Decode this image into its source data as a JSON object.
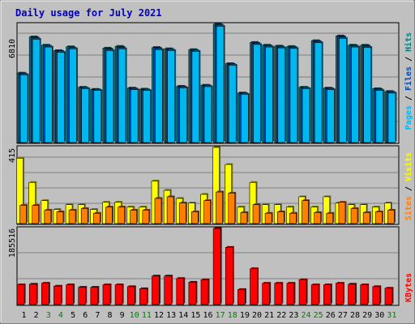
{
  "chart_data": [
    {
      "type": "bar",
      "title": "Daily usage for July 2021",
      "ylabel_parts": [
        {
          "text": "Pages",
          "color": "#00b8f0"
        },
        {
          "text": " / ",
          "color": "#000000"
        },
        {
          "text": "Files",
          "color": "#0048b0"
        },
        {
          "text": " / ",
          "color": "#000000"
        },
        {
          "text": "Hits",
          "color": "#008080"
        }
      ],
      "ymax_label": "6810",
      "ylim": [
        0,
        6810
      ],
      "categories": [
        "1",
        "2",
        "3",
        "4",
        "5",
        "6",
        "7",
        "8",
        "9",
        "10",
        "11",
        "12",
        "13",
        "14",
        "15",
        "16",
        "17",
        "18",
        "19",
        "20",
        "21",
        "22",
        "23",
        "24",
        "25",
        "26",
        "27",
        "28",
        "29",
        "30",
        "31"
      ],
      "weekend_days": [
        "3",
        "4",
        "10",
        "11",
        "17",
        "18",
        "24",
        "25",
        "31"
      ],
      "series": [
        {
          "name": "Hits",
          "color": "#008080",
          "values": [
            4001,
            6084,
            5610,
            5296,
            5514,
            3185,
            3066,
            5439,
            5539,
            3139,
            3079,
            5476,
            5401,
            3242,
            5354,
            3304,
            6810,
            4547,
            2858,
            5767,
            5610,
            5557,
            5532,
            3187,
            5867,
            3139,
            6140,
            5610,
            5606,
            3102,
            2944
          ]
        },
        {
          "name": "Files",
          "color": "#0048b0",
          "values": [
            3950,
            6020,
            5550,
            5250,
            5450,
            3140,
            3040,
            5380,
            5480,
            3100,
            3040,
            5420,
            5350,
            3200,
            5300,
            3270,
            6760,
            4500,
            2820,
            5710,
            5560,
            5500,
            5480,
            3150,
            5810,
            3100,
            6080,
            5560,
            5550,
            3060,
            2900
          ]
        },
        {
          "name": "Pages",
          "color": "#00b8f0",
          "values": [
            3900,
            5950,
            5500,
            5200,
            5400,
            3100,
            3000,
            5300,
            5400,
            3050,
            3000,
            5350,
            5300,
            3150,
            5250,
            3220,
            6700,
            4450,
            2780,
            5650,
            5500,
            5450,
            5420,
            3100,
            5750,
            3050,
            6000,
            5500,
            5480,
            3000,
            2850
          ]
        }
      ]
    },
    {
      "type": "bar",
      "ylabel_parts": [
        {
          "text": "Sites",
          "color": "#ff8000"
        },
        {
          "text": " / ",
          "color": "#000000"
        },
        {
          "text": "Visits",
          "color": "#ffff00"
        }
      ],
      "ymax_label": "415",
      "ylim": [
        0,
        415
      ],
      "series": [
        {
          "name": "Visits",
          "color": "#ffff00",
          "values": [
            356,
            224,
            125,
            77,
            103,
            103,
            77,
            116,
            116,
            90,
            90,
            232,
            181,
            137,
            112,
            159,
            415,
            322,
            90,
            224,
            103,
            103,
            90,
            146,
            90,
            146,
            112,
            103,
            103,
            90,
            112
          ]
        },
        {
          "name": "Sites",
          "color": "#ff8000",
          "values": [
            99,
            99,
            73,
            64,
            73,
            82,
            56,
            90,
            90,
            73,
            73,
            137,
            146,
            112,
            64,
            125,
            172,
            166,
            60,
            103,
            56,
            64,
            56,
            125,
            60,
            56,
            116,
            82,
            60,
            64,
            73
          ]
        }
      ]
    },
    {
      "type": "bar",
      "ylabel_parts": [
        {
          "text": "KBytes",
          "color": "#ff0000"
        }
      ],
      "ymax_label": "185516",
      "ylim": [
        0,
        185516
      ],
      "series": [
        {
          "name": "KBytes",
          "color": "#ff0000",
          "values": [
            48200,
            49700,
            52000,
            44900,
            48200,
            42200,
            42200,
            48200,
            48200,
            43700,
            38700,
            69600,
            69600,
            63600,
            54500,
            60500,
            185516,
            139500,
            36700,
            87400,
            52000,
            52000,
            52000,
            60500,
            48200,
            48200,
            52000,
            49700,
            48200,
            43700,
            39900
          ]
        }
      ]
    }
  ]
}
